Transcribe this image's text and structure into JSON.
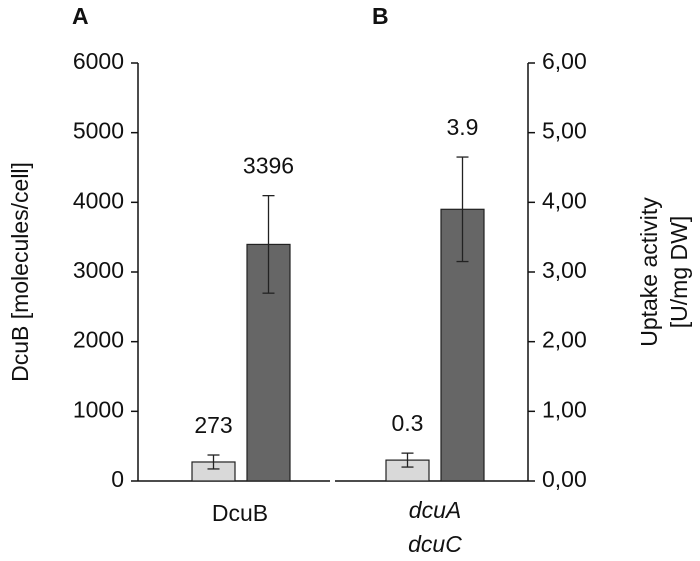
{
  "chart_data": [
    {
      "type": "bar",
      "panel": "A",
      "ylabel": "DcuB [molecules/cell]",
      "categories": [
        "DcuB"
      ],
      "series": [
        {
          "color": "#d9d9d9",
          "values": [
            273
          ],
          "errors": [
            100
          ]
        },
        {
          "color": "#666666",
          "values": [
            3396
          ],
          "errors": [
            700
          ]
        }
      ],
      "ylim": [
        0,
        6000
      ],
      "yticks": [
        0,
        1000,
        2000,
        3000,
        4000,
        5000,
        6000
      ]
    },
    {
      "type": "bar",
      "panel": "B",
      "y2label": [
        "Uptake activity",
        "[U/mg DW]"
      ],
      "categories": [
        [
          "dcuA",
          "dcuC"
        ]
      ],
      "series": [
        {
          "color": "#d9d9d9",
          "values": [
            0.3
          ],
          "errors": [
            0.1
          ],
          "axis": "y2"
        },
        {
          "color": "#666666",
          "values": [
            3.9
          ],
          "errors": [
            0.75
          ],
          "axis": "y2"
        }
      ],
      "y2lim": [
        0,
        6
      ],
      "y2ticks": [
        {
          "value": 0,
          "label": "0,00"
        },
        {
          "value": 1,
          "label": "1,00"
        },
        {
          "value": 2,
          "label": "2,00"
        },
        {
          "value": 3,
          "label": "3,00"
        },
        {
          "value": 4,
          "label": "4,00"
        },
        {
          "value": 5,
          "label": "5,00"
        },
        {
          "value": 6,
          "label": "6,00"
        }
      ]
    }
  ]
}
